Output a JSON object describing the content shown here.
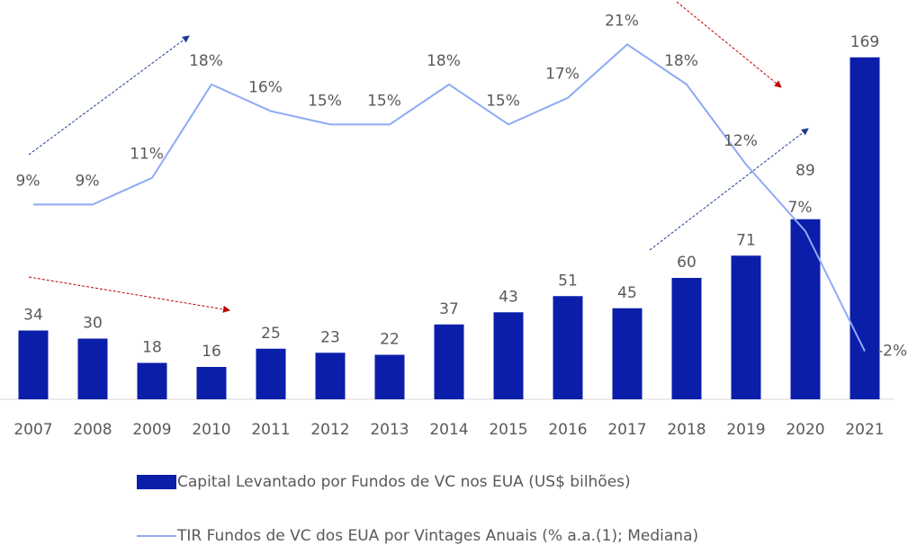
{
  "chart_data": {
    "type": "bar_line",
    "categories": [
      "2007",
      "2008",
      "2009",
      "2010",
      "2011",
      "2012",
      "2013",
      "2014",
      "2015",
      "2016",
      "2017",
      "2018",
      "2019",
      "2020",
      "2021"
    ],
    "series": [
      {
        "name": "Capital Levantado por Fundos de VC nos EUA (US$ bilhões)",
        "type": "bar",
        "color": "#0b1eaa",
        "values": [
          34,
          30,
          18,
          16,
          25,
          23,
          22,
          37,
          43,
          51,
          45,
          60,
          71,
          89,
          169
        ]
      },
      {
        "name": "TIR Fundos de VC dos EUA por Vintages Anuais (% a.a.(1); Mediana)",
        "type": "line",
        "axis": "y2",
        "color": "#8eaaf5",
        "values": [
          9,
          9,
          11,
          18,
          16,
          15,
          15,
          18,
          15,
          17,
          21,
          18,
          12,
          7,
          -2
        ],
        "value_labels": [
          "9%",
          "9%",
          "11%",
          "18%",
          "16%",
          "15%",
          "15%",
          "18%",
          "15%",
          "17%",
          "21%",
          "18%",
          "12%",
          "7%",
          "-2%"
        ]
      }
    ],
    "ylim": [
      0,
      180
    ],
    "y2lim": [
      -5.6,
      21.7
    ]
  }
}
